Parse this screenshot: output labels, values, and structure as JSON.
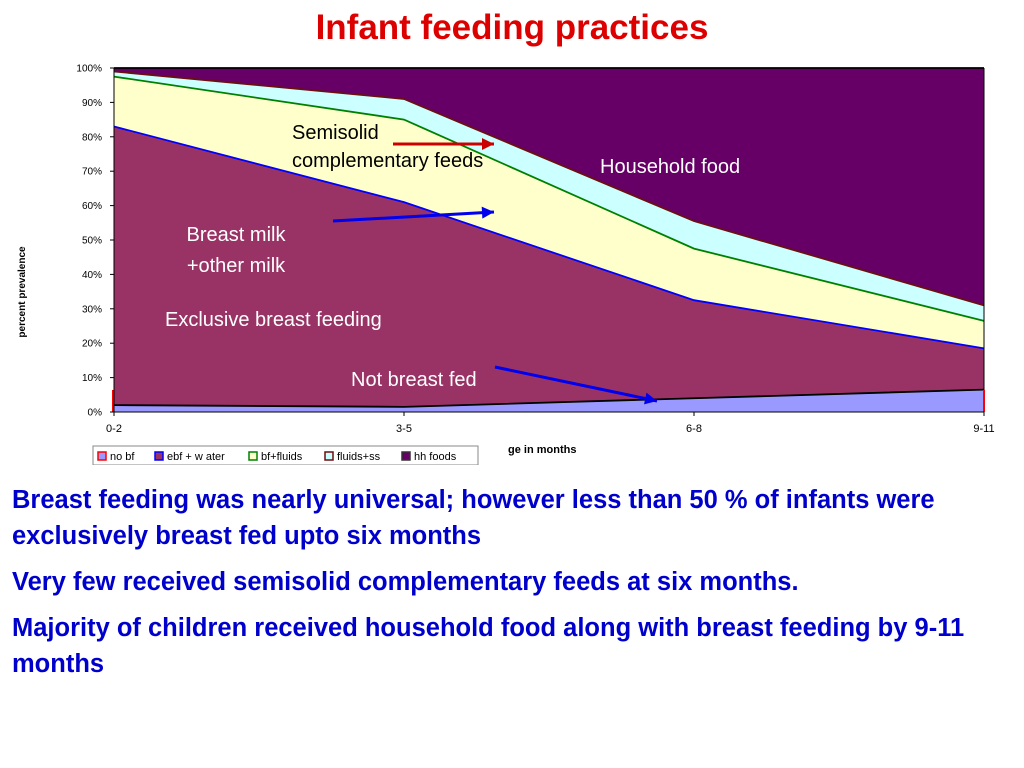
{
  "slide": {
    "title": "Infant feeding practices",
    "bullets": [
      "Breast feeding was nearly universal; however less than 50 % of infants were exclusively breast fed upto six months",
      "Very few  received semisolid   complementary feeds at six months.",
      "Majority of  children received  household  food along with breast feeding  by  9-11 months"
    ]
  },
  "chart_data": {
    "type": "area",
    "stacked": true,
    "categories": [
      "0-2",
      "3-5",
      "6-8",
      "9-11"
    ],
    "ylabel": "percent prevalence",
    "xlabel": "ge in months",
    "ylim": [
      0,
      100
    ],
    "yticks": [
      "0%",
      "10%",
      "20%",
      "30%",
      "40%",
      "50%",
      "60%",
      "70%",
      "80%",
      "90%",
      "100%"
    ],
    "series": [
      {
        "name": "no bf",
        "color": "#9999ff",
        "values": [
          2,
          1.5,
          4,
          6.5
        ]
      },
      {
        "name": "ebf + w ater",
        "color": "#993366",
        "values": [
          81,
          59.5,
          28.5,
          12
        ]
      },
      {
        "name": "bf+fluids",
        "color": "#ffffcc",
        "values": [
          14.5,
          24,
          15,
          8
        ]
      },
      {
        "name": "fluids+ss",
        "color": "#ccffff",
        "values": [
          1.5,
          6,
          8,
          4.5
        ]
      },
      {
        "name": "hh foods",
        "color": "#660066",
        "values": [
          1,
          9,
          44.5,
          69
        ]
      }
    ],
    "boundary_colors": [
      "#000000",
      "#0000ff",
      "#008000",
      "#6b0f0f",
      "#000000"
    ],
    "annotations": [
      {
        "text": "Semisolid",
        "color": "#000000"
      },
      {
        "text": "complementary  feeds",
        "color": "#000000"
      },
      {
        "text": "Household  food",
        "color": "#ffffff"
      },
      {
        "text": "Breast milk",
        "color": "#ffffff"
      },
      {
        "text": "+other milk",
        "color": "#ffffff"
      },
      {
        "text": "Exclusive breast feeding",
        "color": "#ffffff"
      },
      {
        "text": "Not breast fed",
        "color": "#ffffff"
      }
    ],
    "legend_position": "bottom-left",
    "grid": false
  }
}
